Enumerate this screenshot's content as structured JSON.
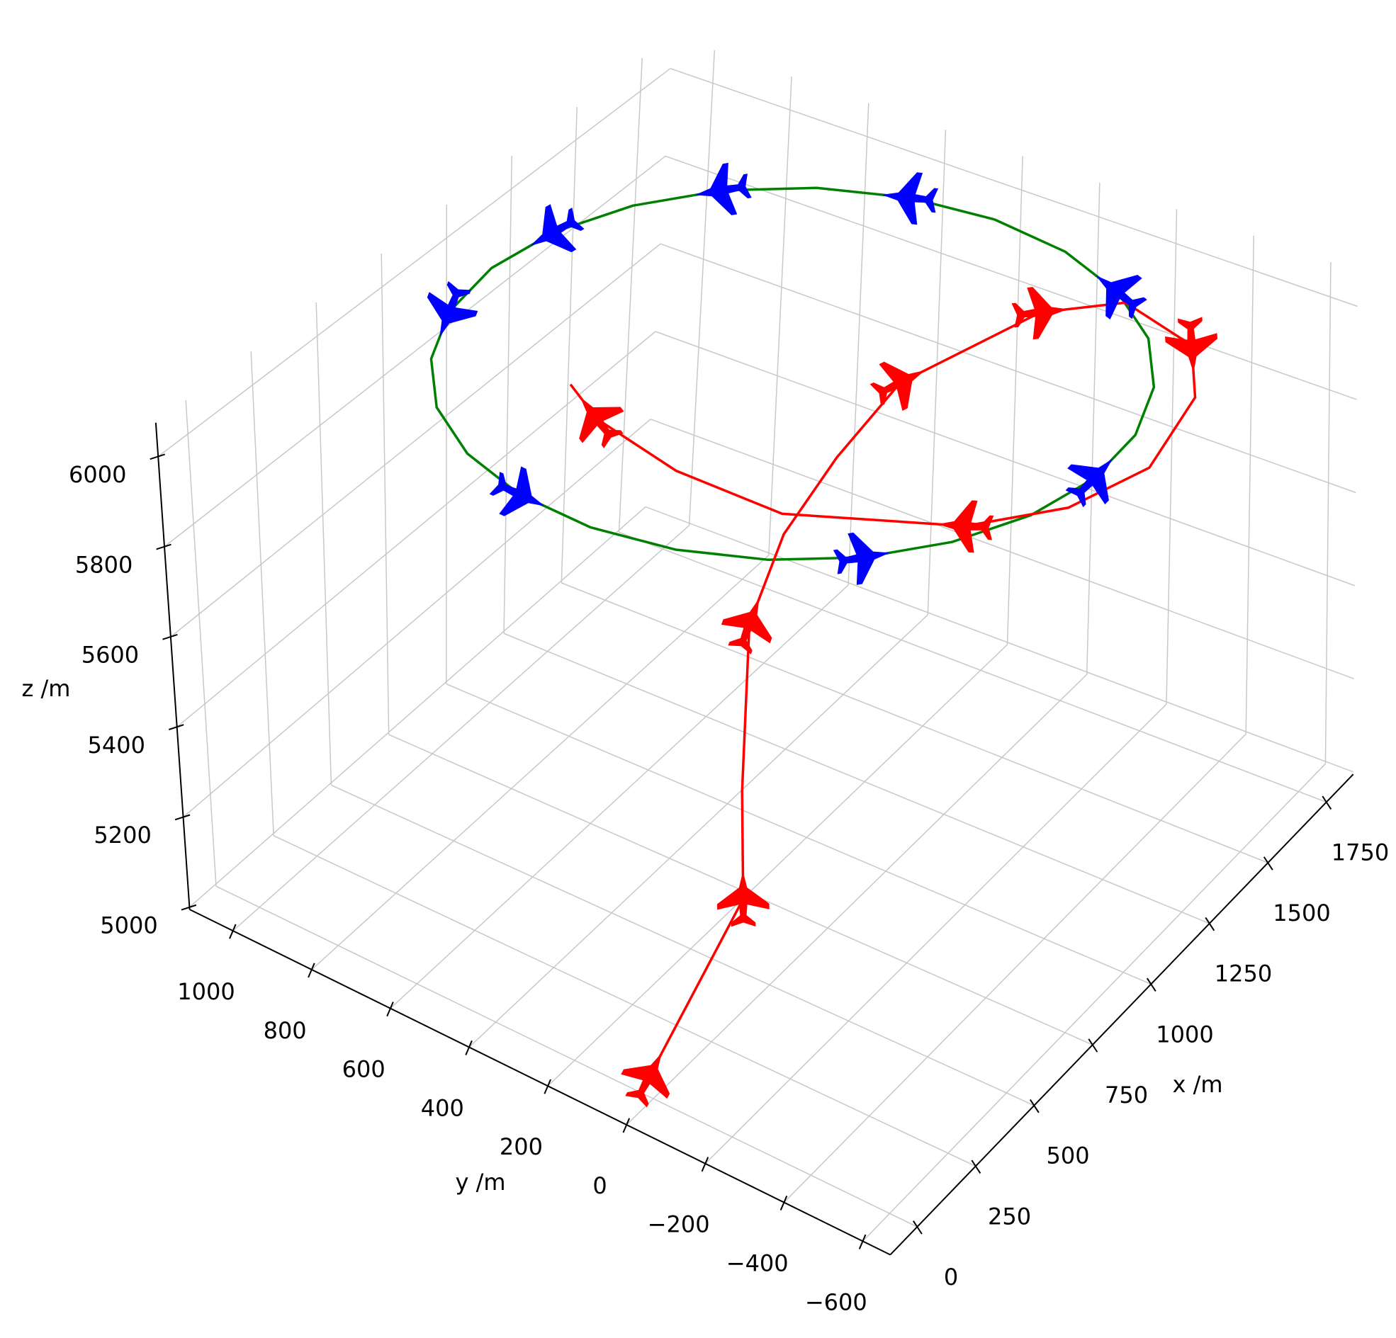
{
  "chart_data": {
    "type": "line3d",
    "xlabel": "x /m",
    "ylabel": "y /m",
    "zlabel": "z /m",
    "xlim": [
      -115,
      1865
    ],
    "ylim": [
      -670,
      1110
    ],
    "zlim": [
      4995,
      6075
    ],
    "xticks": [
      0,
      250,
      500,
      750,
      1000,
      1250,
      1500,
      1750
    ],
    "yticks": [
      {
        "value": -600,
        "label": "−600"
      },
      {
        "value": -400,
        "label": "−400"
      },
      {
        "value": -200,
        "label": "−200"
      },
      0,
      200,
      400,
      600,
      800,
      1000
    ],
    "zticks": [
      5000,
      5200,
      5400,
      5600,
      5800,
      6000
    ],
    "grid": true,
    "series": [
      {
        "color": "green",
        "marker_color": "blue",
        "x": [
          1730,
          1703,
          1625,
          1502,
          1340,
          1152,
          950,
          748,
          560,
          398,
          275,
          197,
          170,
          197,
          275,
          398,
          560,
          748,
          950,
          1152,
          1340,
          1502,
          1625,
          1703,
          1730
        ],
        "y": [
          180,
          382,
          570,
          732,
          855,
          933,
          960,
          933,
          855,
          732,
          570,
          382,
          180,
          -22,
          -210,
          -372,
          -495,
          -573,
          -600,
          -573,
          -495,
          -372,
          -210,
          -22,
          180
        ],
        "z": [
          6000,
          6000,
          6000,
          6000,
          6000,
          6000,
          6000,
          6000,
          6000,
          6000,
          6000,
          6000,
          6000,
          6000,
          6000,
          6000,
          6000,
          6000,
          6000,
          6000,
          6000,
          6000,
          6000,
          6000,
          6000
        ],
        "markers": [
          1,
          3,
          5,
          7,
          11,
          15,
          18,
          22
        ]
      },
      {
        "color": "red",
        "marker_color": "red",
        "x": [
          50,
          348,
          378,
          613,
          796,
          1040,
          1292,
          1624,
          1760,
          1693,
          1519,
          1224,
          990,
          802,
          619,
          635,
          715,
          801
        ],
        "y": [
          40,
          -41,
          -34,
          84,
          109,
          130,
          131,
          -12,
          -142,
          -357,
          -481,
          -558,
          -504,
          -362,
          -10,
          275,
          533,
          658
        ],
        "z": [
          5000,
          5250,
          5450,
          5650,
          5750,
          5800,
          5850,
          5900,
          5900,
          5900,
          5900,
          5900,
          5900,
          5900,
          5900,
          5900,
          5900,
          5900
        ],
        "markers": [
          0,
          1,
          3,
          6,
          7,
          9,
          13,
          16
        ]
      }
    ]
  }
}
